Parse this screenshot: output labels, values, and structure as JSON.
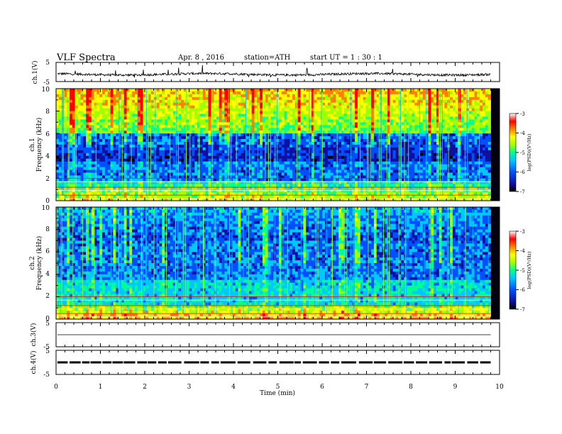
{
  "header": {
    "title": "VLF  Spectra",
    "date": "Apr. 8  , 2016",
    "station": "station=ATH",
    "start": "start  UT  =   1  : 30 : 1"
  },
  "chart_data": [
    {
      "type": "line",
      "panel": "ch1-waveform",
      "ylabel": "ch.1(V)",
      "ylim": [
        -5,
        5
      ],
      "yticks": [
        "5",
        "-5"
      ],
      "xlim": [
        0,
        10
      ],
      "mean": -1.2,
      "x_end": 9.8
    },
    {
      "type": "heatmap",
      "panel": "ch1-spectrogram",
      "ylabel": "ch.1",
      "ylabel2": "Frequency  (kHz)",
      "ylim": [
        0,
        10
      ],
      "yticks": [
        "0",
        "2",
        "4",
        "6",
        "8",
        "10"
      ],
      "xlim": [
        0,
        10
      ],
      "x_end": 9.8,
      "colorbar": {
        "label": "log(PSD)(V²/Hz)",
        "range": [
          -7,
          -3
        ],
        "ticks": [
          "-3",
          "-4",
          "-5",
          "-6",
          "-7"
        ]
      }
    },
    {
      "type": "heatmap",
      "panel": "ch2-spectrogram",
      "ylabel": "ch.2",
      "ylabel2": "Frequency  (kHz)",
      "ylim": [
        0,
        10
      ],
      "yticks": [
        "0",
        "2",
        "4",
        "6",
        "8",
        "10"
      ],
      "xlim": [
        0,
        10
      ],
      "x_end": 9.8,
      "colorbar": {
        "label": "log(PSD)(V²/Hz)",
        "range": [
          -7,
          -3
        ],
        "ticks": [
          "-3",
          "-4",
          "-5",
          "-6",
          "-7"
        ]
      }
    },
    {
      "type": "line",
      "panel": "ch3-waveform",
      "ylabel": "ch.3(V)",
      "ylim": [
        -5,
        5
      ],
      "yticks": [
        "5",
        "-5"
      ],
      "xlim": [
        0,
        10
      ],
      "mean": 0,
      "x_end": 9.8
    },
    {
      "type": "line",
      "panel": "ch4-waveform",
      "ylabel": "ch.4(V)",
      "ylim": [
        -5,
        5
      ],
      "yticks": [
        "5",
        "-5"
      ],
      "xlim": [
        0,
        10
      ],
      "mean": 0,
      "x_end": 9.8
    }
  ],
  "xaxis": {
    "label": "Time  (min)",
    "ticks": [
      "0",
      "1",
      "2",
      "3",
      "4",
      "5",
      "6",
      "7",
      "8",
      "9",
      "10"
    ]
  },
  "colors": {
    "frame": "#000000",
    "waveform": "#000000",
    "colormap": [
      "#000000",
      "#1010a0",
      "#0050ff",
      "#00c8ff",
      "#00ff90",
      "#a0ff00",
      "#ffff00",
      "#ff8000",
      "#ff0000",
      "#ffffff"
    ]
  }
}
